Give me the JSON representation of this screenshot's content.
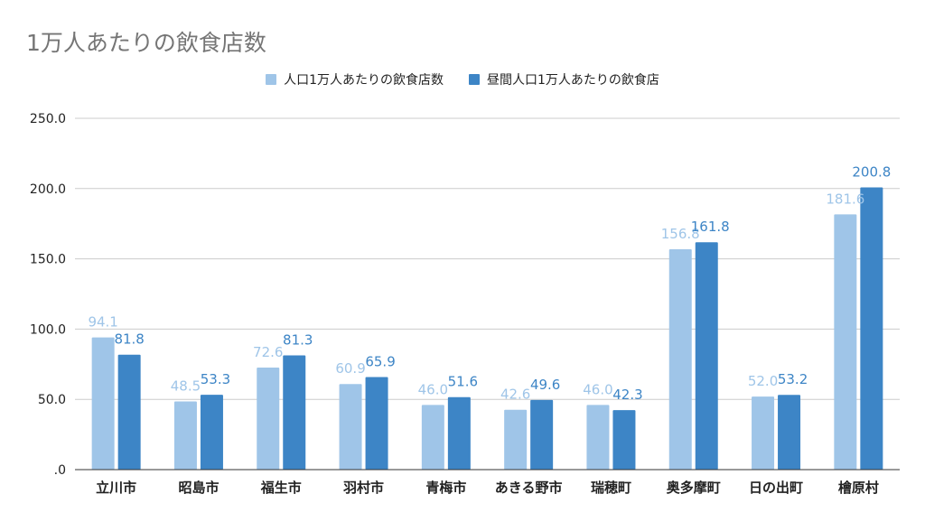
{
  "chart_data": {
    "type": "bar",
    "title": "1万人あたりの飲食店数",
    "legend_position": "top-center",
    "grid": true,
    "xlabel": "",
    "ylabel": "",
    "ylim": [
      0,
      250
    ],
    "yticks": [
      0,
      50,
      100,
      150,
      200,
      250
    ],
    "ytick_labels": [
      ".0",
      "50.0",
      "100.0",
      "150.0",
      "200.0",
      "250.0"
    ],
    "categories": [
      "立川市",
      "昭島市",
      "福生市",
      "羽村市",
      "青梅市",
      "あきる野市",
      "瑞穂町",
      "奥多摩町",
      "日の出町",
      "檜原村"
    ],
    "series": [
      {
        "name": "人口1万人あたりの飲食店数",
        "color": "#9fc5e8",
        "values": [
          94.1,
          48.5,
          72.6,
          60.9,
          46.0,
          42.6,
          46.0,
          156.8,
          52.0,
          181.6
        ],
        "labels": [
          "94.1",
          "48.5",
          "72.6",
          "60.9",
          "46.0",
          "42.6",
          "46.0",
          "156.8",
          "52.0",
          "181.6"
        ]
      },
      {
        "name": "昼間人口1万人あたりの飲食店",
        "color": "#3d85c6",
        "values": [
          81.8,
          53.3,
          81.3,
          65.9,
          51.6,
          49.6,
          42.3,
          161.8,
          53.2,
          200.8
        ],
        "labels": [
          "81.8",
          "53.3",
          "81.3",
          "65.9",
          "51.6",
          "49.6",
          "42.3",
          "161.8",
          "53.2",
          "200.8"
        ]
      }
    ]
  }
}
